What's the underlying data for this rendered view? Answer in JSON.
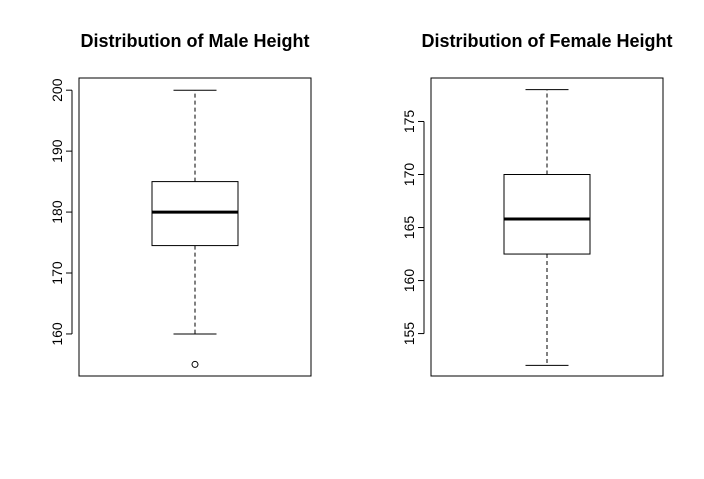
{
  "chart_data": [
    {
      "type": "box",
      "title": "Distribution of Male Height",
      "ylim": [
        153.1,
        202.0
      ],
      "yticks": [
        160,
        170,
        180,
        190,
        200
      ],
      "box": {
        "whisker_low": 160,
        "q1": 174.5,
        "median": 180,
        "q3": 185,
        "whisker_high": 200
      },
      "outliers": [
        155
      ]
    },
    {
      "type": "box",
      "title": "Distribution of Female Height",
      "ylim": [
        151.0,
        179.1
      ],
      "yticks": [
        155,
        160,
        165,
        170,
        175
      ],
      "box": {
        "whisker_low": 152,
        "q1": 162.5,
        "median": 165.8,
        "q3": 170,
        "whisker_high": 178
      },
      "outliers": []
    }
  ]
}
